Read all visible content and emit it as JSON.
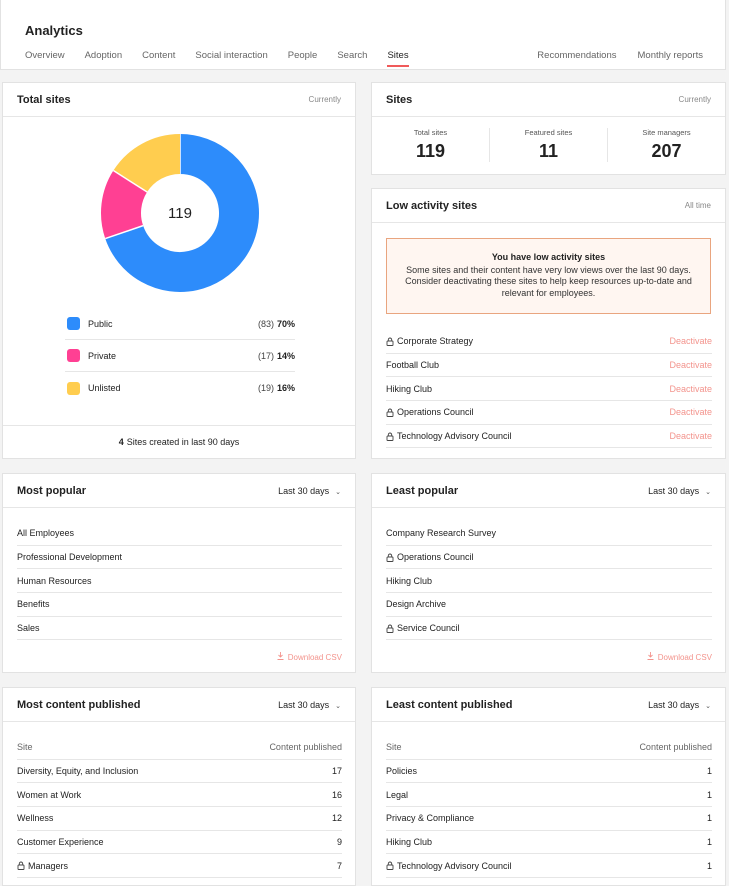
{
  "header": {
    "title": "Analytics",
    "tabs": [
      {
        "label": "Overview",
        "active": false
      },
      {
        "label": "Adoption",
        "active": false
      },
      {
        "label": "Content",
        "active": false
      },
      {
        "label": "Social interaction",
        "active": false
      },
      {
        "label": "People",
        "active": false
      },
      {
        "label": "Search",
        "active": false
      },
      {
        "label": "Sites",
        "active": true
      }
    ],
    "right_tabs": [
      "Recommendations",
      "Monthly reports"
    ]
  },
  "total_sites": {
    "title": "Total sites",
    "period": "Currently",
    "total": 119,
    "legend": [
      {
        "label": "Public",
        "count": 83,
        "count_label": "(83)",
        "percent_label": "70%",
        "color": "#2d8cfb"
      },
      {
        "label": "Private",
        "count": 17,
        "count_label": "(17)",
        "percent_label": "14%",
        "color": "#ff4093"
      },
      {
        "label": "Unlisted",
        "count": 19,
        "count_label": "(19)",
        "percent_label": "16%",
        "color": "#ffcd4f"
      }
    ],
    "footer": {
      "count": 4,
      "text": "Sites created in last 90 days"
    }
  },
  "sites": {
    "title": "Sites",
    "period": "Currently",
    "stats": [
      {
        "label": "Total sites",
        "value": 119
      },
      {
        "label": "Featured sites",
        "value": 11
      },
      {
        "label": "Site managers",
        "value": 207
      }
    ]
  },
  "low_activity": {
    "title": "Low activity sites",
    "period": "All time",
    "alert_title": "You have low activity sites",
    "alert_text": "Some sites and their content have very low views over the last 90 days. Consider deactivating these sites to help keep resources up-to-date and relevant for employees.",
    "action": "Deactivate",
    "rows": [
      {
        "name": "Corporate Strategy",
        "locked": true
      },
      {
        "name": "Football Club",
        "locked": false
      },
      {
        "name": "Hiking Club",
        "locked": false
      },
      {
        "name": "Operations Council",
        "locked": true
      },
      {
        "name": "Technology Advisory Council",
        "locked": true
      }
    ]
  },
  "most_popular": {
    "title": "Most popular",
    "period": "Last 30 days",
    "download": "Download CSV",
    "rows": [
      {
        "name": "All Employees",
        "locked": false
      },
      {
        "name": "Professional Development",
        "locked": false
      },
      {
        "name": "Human Resources",
        "locked": false
      },
      {
        "name": "Benefits",
        "locked": false
      },
      {
        "name": "Sales",
        "locked": false
      }
    ]
  },
  "least_popular": {
    "title": "Least popular",
    "period": "Last 30 days",
    "download": "Download CSV",
    "rows": [
      {
        "name": "Company Research Survey",
        "locked": false
      },
      {
        "name": "Operations Council",
        "locked": true
      },
      {
        "name": "Hiking Club",
        "locked": false
      },
      {
        "name": "Design Archive",
        "locked": false
      },
      {
        "name": "Service Council",
        "locked": true
      }
    ]
  },
  "most_content": {
    "title": "Most content published",
    "period": "Last 30 days",
    "columns": [
      "Site",
      "Content published"
    ],
    "rows": [
      {
        "name": "Diversity, Equity, and Inclusion",
        "locked": false,
        "count": 17
      },
      {
        "name": "Women at Work",
        "locked": false,
        "count": 16
      },
      {
        "name": "Wellness",
        "locked": false,
        "count": 12
      },
      {
        "name": "Customer Experience",
        "locked": false,
        "count": 9
      },
      {
        "name": "Managers",
        "locked": true,
        "count": 7
      }
    ]
  },
  "least_content": {
    "title": "Least content published",
    "period": "Last 30 days",
    "columns": [
      "Site",
      "Content published"
    ],
    "rows": [
      {
        "name": "Policies",
        "locked": false,
        "count": 1
      },
      {
        "name": "Legal",
        "locked": false,
        "count": 1
      },
      {
        "name": "Privacy & Compliance",
        "locked": false,
        "count": 1
      },
      {
        "name": "Hiking Club",
        "locked": false,
        "count": 1
      },
      {
        "name": "Technology Advisory Council",
        "locked": true,
        "count": 1
      }
    ]
  }
}
